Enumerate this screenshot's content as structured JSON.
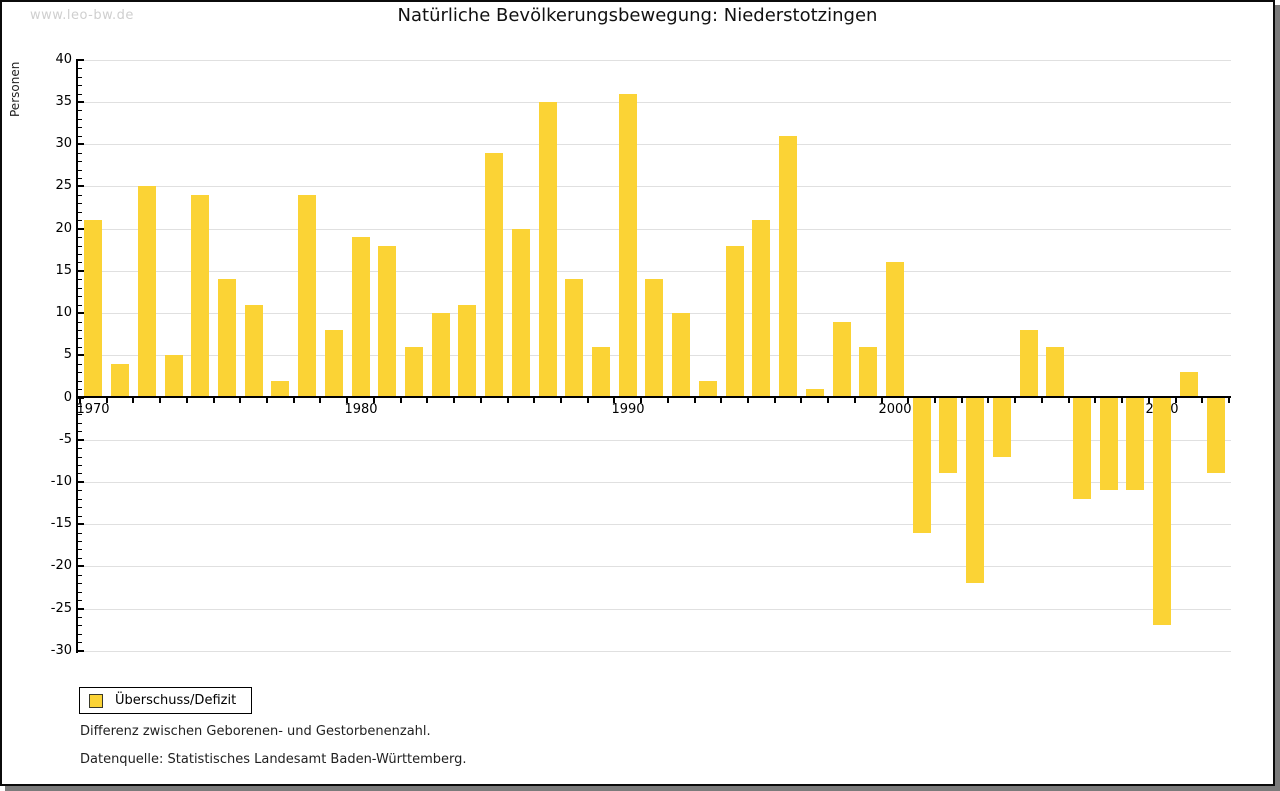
{
  "page": {
    "watermark": "www.leo-bw.de"
  },
  "chart_data": {
    "type": "bar",
    "title": "Natürliche Bevölkerungsbewegung: Niederstotzingen",
    "ylabel": "Personen",
    "xlabel": "",
    "series_name": "Überschuss/Defizit",
    "categories": [
      1970,
      1971,
      1972,
      1973,
      1974,
      1975,
      1976,
      1977,
      1978,
      1979,
      1980,
      1981,
      1982,
      1983,
      1984,
      1985,
      1986,
      1987,
      1988,
      1989,
      1990,
      1991,
      1992,
      1993,
      1994,
      1995,
      1996,
      1997,
      1998,
      1999,
      2000,
      2001,
      2002,
      2003,
      2004,
      2005,
      2006,
      2007,
      2008,
      2009,
      2010,
      2011,
      2012
    ],
    "values": [
      21,
      4,
      25,
      5,
      24,
      14,
      11,
      2,
      24,
      8,
      19,
      18,
      6,
      10,
      11,
      29,
      20,
      35,
      14,
      6,
      36,
      14,
      10,
      2,
      18,
      21,
      31,
      1,
      9,
      6,
      16,
      -16,
      -9,
      -22,
      -7,
      8,
      6,
      -12,
      -11,
      -11,
      -27,
      3,
      -9
    ],
    "ylim": [
      -30,
      40
    ],
    "ytick_step": 5,
    "yticks": [
      40,
      35,
      30,
      25,
      20,
      15,
      10,
      5,
      0,
      -5,
      -10,
      -15,
      -20,
      -25,
      -30
    ],
    "xticklabels": [
      "1970",
      "1980",
      "1990",
      "2000",
      "2010"
    ],
    "grid": true,
    "legend_position": "bottom-left",
    "bar_color": "#FBD335"
  },
  "colors": {
    "bar": "#FBD335",
    "grid": "#e0e0e0",
    "axis": "#000000",
    "watermark": "#cfcfcf",
    "frame_shadow": "#7b7b7b"
  },
  "legend": {
    "label": "Überschuss/Defizit"
  },
  "footnotes": [
    "Differenz zwischen Geborenen- und Gestorbenenzahl.",
    "Datenquelle: Statistisches Landesamt Baden-Württemberg."
  ]
}
